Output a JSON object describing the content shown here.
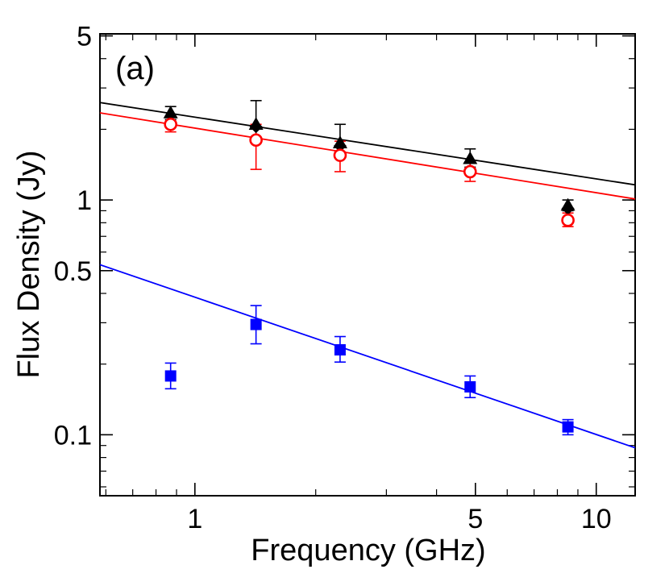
{
  "chart_data": {
    "type": "scatter",
    "panel_label": "(a)",
    "xlabel": "Frequency (GHz)",
    "ylabel": "Flux Density (Jy)",
    "xscale": "log",
    "yscale": "log",
    "xlim": [
      0.58,
      12.5
    ],
    "ylim": [
      0.055,
      5.1
    ],
    "x_ticks": [
      {
        "value": 1,
        "label": "1"
      },
      {
        "value": 5,
        "label": "5"
      },
      {
        "value": 10,
        "label": "10"
      }
    ],
    "y_ticks": [
      {
        "value": 0.1,
        "label": "0.1"
      },
      {
        "value": 0.5,
        "label": "0.5"
      },
      {
        "value": 1,
        "label": "1"
      },
      {
        "value": 5,
        "label": "5"
      }
    ],
    "series": [
      {
        "name": "black triangles",
        "marker": "triangle",
        "color": "#000000",
        "points": [
          {
            "x": 0.87,
            "y": 2.35,
            "ylo": 2.2,
            "yhi": 2.5
          },
          {
            "x": 1.42,
            "y": 2.1,
            "ylo": 1.85,
            "yhi": 2.65
          },
          {
            "x": 2.3,
            "y": 1.75,
            "ylo": 1.6,
            "yhi": 2.1
          },
          {
            "x": 4.85,
            "y": 1.5,
            "ylo": 1.38,
            "yhi": 1.65
          },
          {
            "x": 8.5,
            "y": 0.95,
            "ylo": 0.9,
            "yhi": 1.0
          }
        ],
        "fit": {
          "x": [
            0.58,
            12.5
          ],
          "y": [
            2.6,
            1.16
          ]
        }
      },
      {
        "name": "black diamonds",
        "marker": "diamond",
        "color": "#000000",
        "points": [
          {
            "x": 1.42,
            "y": 2.05
          },
          {
            "x": 2.3,
            "y": 1.7
          },
          {
            "x": 8.5,
            "y": 0.92
          }
        ]
      },
      {
        "name": "red open circles",
        "marker": "circle-open",
        "color": "#ff0000",
        "points": [
          {
            "x": 0.87,
            "y": 2.1,
            "ylo": 1.95,
            "yhi": 2.25
          },
          {
            "x": 1.42,
            "y": 1.8,
            "ylo": 1.35,
            "yhi": 2.1
          },
          {
            "x": 2.3,
            "y": 1.55,
            "ylo": 1.32,
            "yhi": 1.78
          },
          {
            "x": 4.85,
            "y": 1.32,
            "ylo": 1.2,
            "yhi": 1.45
          },
          {
            "x": 8.5,
            "y": 0.82,
            "ylo": 0.77,
            "yhi": 0.88
          }
        ],
        "fit": {
          "x": [
            0.58,
            12.5
          ],
          "y": [
            2.35,
            1.01
          ]
        }
      },
      {
        "name": "blue squares",
        "marker": "square",
        "color": "#0000ff",
        "points": [
          {
            "x": 0.87,
            "y": 0.178,
            "ylo": 0.157,
            "yhi": 0.202
          },
          {
            "x": 1.42,
            "y": 0.295,
            "ylo": 0.244,
            "yhi": 0.355
          },
          {
            "x": 2.3,
            "y": 0.23,
            "ylo": 0.204,
            "yhi": 0.262
          },
          {
            "x": 4.85,
            "y": 0.16,
            "ylo": 0.144,
            "yhi": 0.178
          },
          {
            "x": 8.5,
            "y": 0.108,
            "ylo": 0.1,
            "yhi": 0.116
          }
        ],
        "fit": {
          "x": [
            0.58,
            12.5
          ],
          "y": [
            0.53,
            0.088
          ]
        }
      }
    ]
  }
}
